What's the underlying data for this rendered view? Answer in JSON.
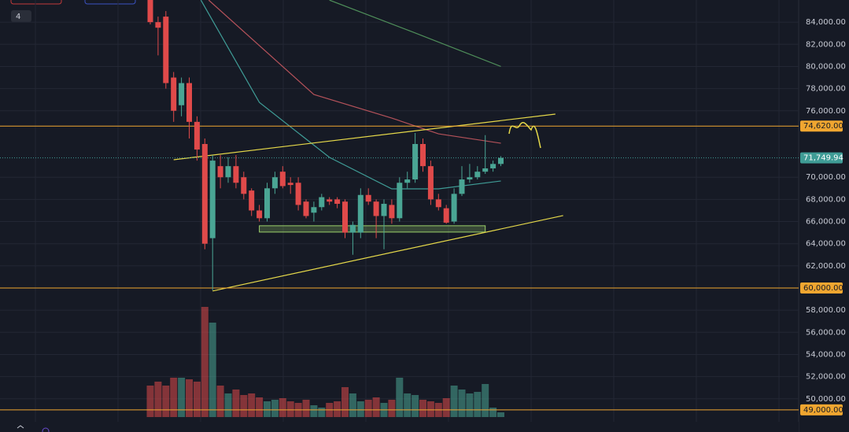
{
  "chart_data": {
    "type": "candlestick",
    "badge": "4",
    "ylim": [
      47000,
      86000
    ],
    "yticks": [
      {
        "value": 50000,
        "label": "50,000.00"
      },
      {
        "value": 52000,
        "label": "52,000.00"
      },
      {
        "value": 54000,
        "label": "54,000.00"
      },
      {
        "value": 56000,
        "label": "56,000.00"
      },
      {
        "value": 58000,
        "label": "58,000.00"
      },
      {
        "value": 62000,
        "label": "62,000.00"
      },
      {
        "value": 64000,
        "label": "64,000.00"
      },
      {
        "value": 66000,
        "label": "66,000.00"
      },
      {
        "value": 68000,
        "label": "68,000.00"
      },
      {
        "value": 70000,
        "label": "70,000.00"
      },
      {
        "value": 76000,
        "label": "76,000.00"
      },
      {
        "value": 78000,
        "label": "78,000.00"
      },
      {
        "value": 80000,
        "label": "80,000.00"
      },
      {
        "value": 82000,
        "label": "82,000.00"
      },
      {
        "value": 84000,
        "label": "84,000.00"
      }
    ],
    "grid": true,
    "up_color": "#4aa594",
    "down_color": "#e04a4a",
    "open": [
      86000,
      84000,
      84500,
      79000,
      76500,
      78500,
      75000,
      73000,
      64500,
      71000,
      70000,
      71000,
      70000,
      68800,
      67000,
      66300,
      69000,
      70500,
      69500,
      69500,
      67800,
      66800,
      67300,
      68000,
      68000,
      67800,
      65000,
      65000,
      68400,
      67800,
      66500,
      67500,
      66300,
      69500,
      69800,
      73000,
      71000,
      68000,
      67200,
      66000,
      68500,
      69800,
      70000,
      70500,
      70800,
      71200
    ],
    "high": [
      86500,
      84500,
      85000,
      79500,
      79000,
      79000,
      75500,
      73500,
      72000,
      72000,
      71800,
      72000,
      70500,
      69000,
      67500,
      69500,
      70500,
      71000,
      70000,
      70000,
      68000,
      67800,
      68500,
      68200,
      68200,
      68000,
      66000,
      69000,
      69000,
      68000,
      68000,
      68000,
      70000,
      70500,
      74000,
      73500,
      71500,
      68500,
      67500,
      69000,
      71000,
      71200,
      71000,
      73800,
      71500,
      71900
    ],
    "low": [
      83800,
      81000,
      78000,
      75000,
      75500,
      73500,
      71500,
      63500,
      59800,
      69000,
      69500,
      69000,
      68000,
      66500,
      66000,
      66000,
      68500,
      69000,
      68500,
      67000,
      66300,
      66000,
      67000,
      67500,
      67200,
      64500,
      63000,
      64500,
      67500,
      64500,
      63500,
      65800,
      66000,
      69000,
      69500,
      70500,
      67500,
      67000,
      65800,
      65800,
      68300,
      69500,
      69800,
      70300,
      70500,
      71000
    ],
    "close": [
      84000,
      83500,
      78500,
      76000,
      78500,
      75000,
      72500,
      64000,
      71500,
      70000,
      71000,
      69500,
      68500,
      67000,
      66300,
      69000,
      70000,
      69200,
      69300,
      67500,
      66500,
      67300,
      68200,
      67800,
      67600,
      65000,
      65700,
      68400,
      67800,
      66500,
      67600,
      66300,
      69500,
      69800,
      73000,
      71000,
      68000,
      67300,
      65900,
      68500,
      69800,
      70000,
      70500,
      70800,
      71200,
      71749.94
    ],
    "volume": [
      40,
      45,
      40,
      50,
      50,
      48,
      45,
      140,
      120,
      40,
      30,
      35,
      28,
      30,
      25,
      20,
      22,
      24,
      20,
      18,
      22,
      15,
      12,
      18,
      20,
      38,
      30,
      20,
      22,
      25,
      18,
      22,
      50,
      30,
      28,
      22,
      20,
      18,
      24,
      40,
      35,
      30,
      32,
      42,
      12,
      6
    ],
    "overlays": [
      {
        "color": "#3f9c96",
        "points": [
          [
            6.5,
            85990
          ],
          [
            14,
            76760
          ],
          [
            23,
            71790
          ],
          [
            31,
            68950
          ],
          [
            37,
            68950
          ],
          [
            45,
            69660
          ]
        ]
      },
      {
        "color": "#b5525a",
        "points": [
          [
            7.5,
            85990
          ],
          [
            21,
            77470
          ],
          [
            31,
            75340
          ],
          [
            37,
            73920
          ],
          [
            45,
            73070
          ]
        ]
      },
      {
        "color": "#4f8f5a",
        "points": [
          [
            23,
            85990
          ],
          [
            33.5,
            83160
          ],
          [
            45,
            80000
          ]
        ]
      },
      {
        "color": "#e6d94a",
        "points": [
          [
            3,
            71580
          ],
          [
            52,
            75700
          ]
        ]
      },
      {
        "color": "#e6d94a",
        "points": [
          [
            8,
            59730
          ],
          [
            53,
            66540
          ]
        ]
      }
    ],
    "zone": {
      "from": 14,
      "to": 43,
      "top": 65620,
      "bottom": 65050,
      "color": "#9bd06a"
    },
    "price_lines": [
      {
        "value": 74620,
        "label": "74,620.00",
        "color": "#f0a630",
        "style": "solid"
      },
      {
        "value": 71749.94,
        "label": "71,749.94",
        "color": "#3f9c96",
        "style": "dotted"
      },
      {
        "value": 60000,
        "label": "60,000.00",
        "color": "#f0a630",
        "style": "solid"
      },
      {
        "value": 49000,
        "label": "49,000.00",
        "color": "#f0a630",
        "style": "solid"
      }
    ]
  }
}
